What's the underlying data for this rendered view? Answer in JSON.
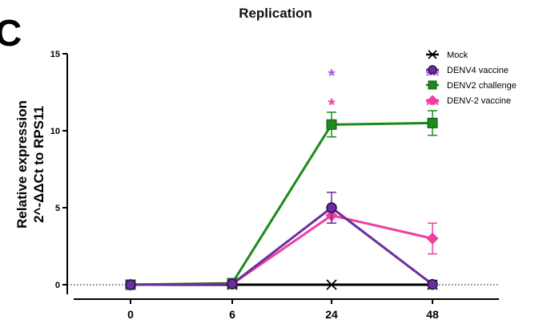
{
  "panel_letter": "C",
  "chart_data": {
    "type": "line",
    "title": "Replication",
    "ylabel_lines": [
      "Relative expression",
      "2^-ΔΔCt to RPS11"
    ],
    "xlabel": "",
    "x": [
      0,
      6,
      24,
      48
    ],
    "x_tick_labels": [
      "0",
      "6",
      "24",
      "48"
    ],
    "ylim": [
      0,
      15
    ],
    "y_ticks": [
      0,
      5,
      10,
      15
    ],
    "y_tick_labels": [
      "0",
      "5",
      "10",
      "15"
    ],
    "baseline": {
      "value": 0,
      "style": "dotted"
    },
    "grid": false,
    "legend_position": "top-right",
    "series": [
      {
        "name": "Mock",
        "color": "#000000",
        "marker": "x",
        "values": [
          0,
          0,
          0,
          0
        ],
        "errors": [
          0,
          0,
          0,
          0
        ]
      },
      {
        "name": "DENV4 vaccine",
        "color": "#6a2f9e",
        "marker": "circle",
        "values": [
          0,
          0.05,
          5.0,
          0.02
        ],
        "errors": [
          0,
          0,
          1.0,
          0
        ]
      },
      {
        "name": "DENV2 challenge",
        "color": "#1c8a1c",
        "marker": "square",
        "values": [
          0,
          0.1,
          10.4,
          10.5
        ],
        "errors": [
          0,
          0,
          0.8,
          0.8
        ]
      },
      {
        "name": "DENV-2 vaccine",
        "color": "#ee3fa0",
        "marker": "diamond",
        "values": [
          0,
          0.05,
          4.5,
          3.0
        ],
        "errors": [
          0,
          0,
          0.5,
          1.0
        ]
      }
    ],
    "annotations": [
      {
        "x": 24,
        "y": 13.7,
        "text": "*",
        "color": "#a455e8"
      },
      {
        "x": 24,
        "y": 11.8,
        "text": "*",
        "color": "#ee3fa0"
      },
      {
        "x": 48,
        "y": 13.7,
        "text": "**",
        "color": "#a455e8"
      },
      {
        "x": 48,
        "y": 11.8,
        "text": "**",
        "color": "#ee3fa0"
      }
    ]
  }
}
